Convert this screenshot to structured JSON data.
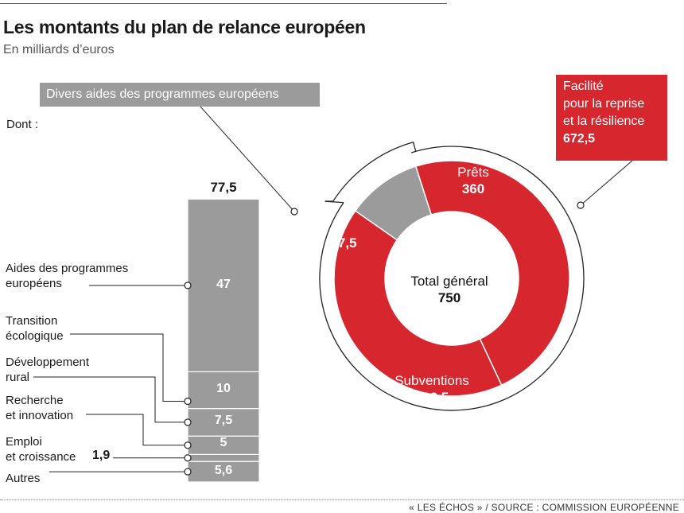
{
  "title": "Les montants du plan de relance européen",
  "subtitle": "En milliards d’euros",
  "dont_label": "Dont :",
  "gray_banner": "Divers aides des programmes européens",
  "red_banner": {
    "line1": "Facilité",
    "line2": "pour la reprise",
    "line3": "et la résilience",
    "value": "672,5"
  },
  "source": "« LES ÉCHOS » / SOURCE :  COMMISSION EUROPÉENNE",
  "colors": {
    "red": "#d6262e",
    "gray": "#9b9b9b",
    "line": "#222222"
  },
  "chart_data": [
    {
      "type": "bar",
      "stacked": true,
      "total": 77.5,
      "total_label": "77,5",
      "segments": [
        {
          "label": "Autres",
          "value": 5.6,
          "value_label": "5,6"
        },
        {
          "label": "Emploi et croissance",
          "value": 1.9,
          "value_label": "1,9"
        },
        {
          "label": "Recherche et innovation",
          "value": 5,
          "value_label": "5"
        },
        {
          "label": "Développement rural",
          "value": 7.5,
          "value_label": "7,5"
        },
        {
          "label": "Transition écologique",
          "value": 10,
          "value_label": "10"
        },
        {
          "label": "Aides des programmes européens",
          "value": 47,
          "value_label": "47"
        }
      ],
      "category_lines": [
        [
          "Aides des programmes",
          "européens"
        ],
        [
          "Transition",
          "écologique"
        ],
        [
          "Développement",
          "rural"
        ],
        [
          "Recherche",
          "et innovation"
        ],
        [
          "Emploi",
          "et croissance"
        ],
        [
          "Autres"
        ]
      ]
    },
    {
      "type": "pie",
      "donut": true,
      "center_label": "Total général",
      "total": 750,
      "total_label": "750",
      "slices": [
        {
          "label": "Prêts",
          "value": 360,
          "value_label": "360",
          "color": "#d6262e"
        },
        {
          "label": "Subventions",
          "value": 312.5,
          "value_label": "312,5",
          "color": "#d6262e"
        },
        {
          "label": "",
          "value": 77.5,
          "value_label": "77,5",
          "color": "#9b9b9b"
        }
      ]
    }
  ]
}
